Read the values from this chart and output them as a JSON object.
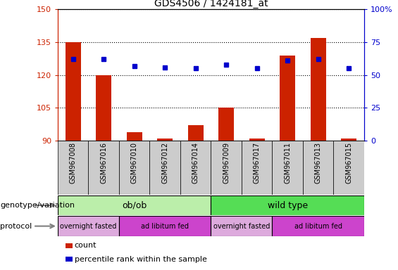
{
  "title": "GDS4506 / 1424181_at",
  "samples": [
    "GSM967008",
    "GSM967016",
    "GSM967010",
    "GSM967012",
    "GSM967014",
    "GSM967009",
    "GSM967017",
    "GSM967011",
    "GSM967013",
    "GSM967015"
  ],
  "count_values": [
    135,
    120,
    94,
    91,
    97,
    105,
    91,
    129,
    137,
    91
  ],
  "percentile_values": [
    62,
    62,
    57,
    56,
    55,
    58,
    55,
    61,
    62,
    55
  ],
  "ylim_left": [
    90,
    150
  ],
  "ylim_right": [
    0,
    100
  ],
  "yticks_left": [
    90,
    105,
    120,
    135,
    150
  ],
  "yticks_right": [
    0,
    25,
    50,
    75,
    100
  ],
  "ytick_labels_right": [
    "0",
    "25",
    "50",
    "75",
    "100%"
  ],
  "bar_color": "#cc2200",
  "dot_color": "#0000cc",
  "bg_color": "#ffffff",
  "tick_bg_color": "#cccccc",
  "genotype_groups": [
    {
      "label": "ob/ob",
      "start": 0,
      "end": 5,
      "color": "#bbeeaa"
    },
    {
      "label": "wild type",
      "start": 5,
      "end": 10,
      "color": "#55dd55"
    }
  ],
  "protocol_groups": [
    {
      "label": "overnight fasted",
      "start": 0,
      "end": 2,
      "color": "#ddaadd"
    },
    {
      "label": "ad libitum fed",
      "start": 2,
      "end": 5,
      "color": "#cc44cc"
    },
    {
      "label": "overnight fasted",
      "start": 5,
      "end": 7,
      "color": "#ddaadd"
    },
    {
      "label": "ad libitum fed",
      "start": 7,
      "end": 10,
      "color": "#cc44cc"
    }
  ],
  "legend_items": [
    {
      "label": "count",
      "color": "#cc2200"
    },
    {
      "label": "percentile rank within the sample",
      "color": "#0000cc"
    }
  ],
  "font_size_title": 10,
  "font_size_ticks": 8,
  "font_size_sample": 7,
  "font_size_group": 9,
  "font_size_legend": 8,
  "font_size_label": 8
}
